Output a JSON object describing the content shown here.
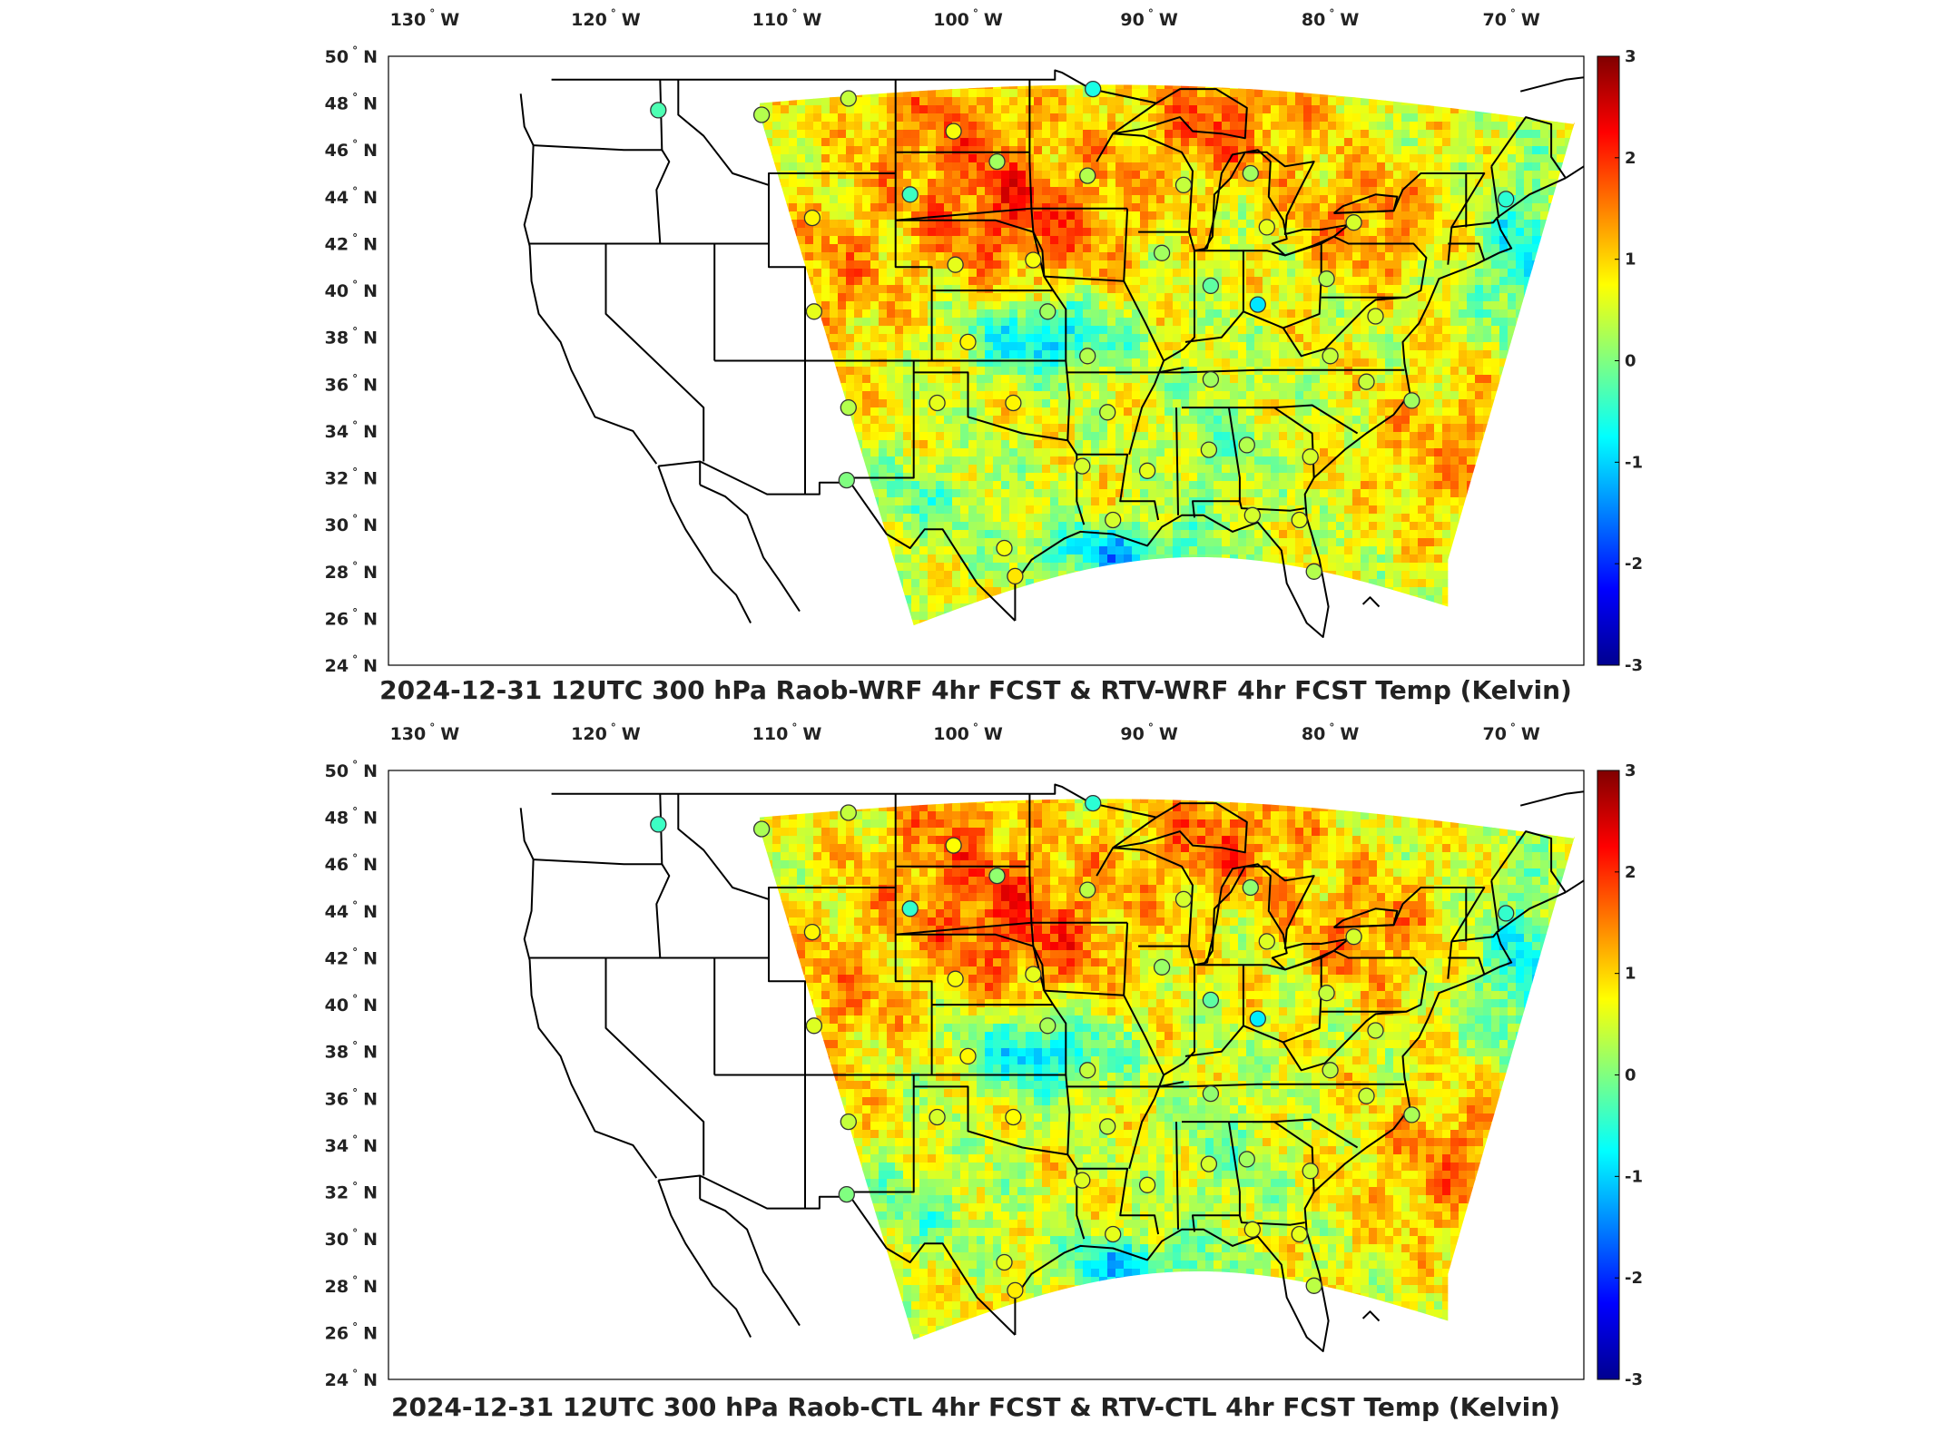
{
  "figure": {
    "panels": [
      {
        "title": "2024-12-31 12UTC 300 hPa Raob-WRF 4hr FCST & RTV-WRF 4hr FCST Temp (Kelvin)",
        "variant": "wrf"
      },
      {
        "title": "2024-12-31 12UTC 300 hPa Raob-CTL 4hr FCST & RTV-CTL 4hr FCST Temp (Kelvin)",
        "variant": "ctl"
      }
    ],
    "lon_ticks": [
      {
        "value": -130,
        "label": "130",
        "hemi": "W"
      },
      {
        "value": -120,
        "label": "120",
        "hemi": "W"
      },
      {
        "value": -110,
        "label": "110",
        "hemi": "W"
      },
      {
        "value": -100,
        "label": "100",
        "hemi": "W"
      },
      {
        "value": -90,
        "label": "90",
        "hemi": "W"
      },
      {
        "value": -80,
        "label": "80",
        "hemi": "W"
      },
      {
        "value": -70,
        "label": "70",
        "hemi": "W"
      }
    ],
    "lat_ticks": [
      {
        "value": 50,
        "label": "50",
        "hemi": "N"
      },
      {
        "value": 48,
        "label": "48",
        "hemi": "N"
      },
      {
        "value": 46,
        "label": "46",
        "hemi": "N"
      },
      {
        "value": 44,
        "label": "44",
        "hemi": "N"
      },
      {
        "value": 42,
        "label": "42",
        "hemi": "N"
      },
      {
        "value": 40,
        "label": "40",
        "hemi": "N"
      },
      {
        "value": 38,
        "label": "38",
        "hemi": "N"
      },
      {
        "value": 36,
        "label": "36",
        "hemi": "N"
      },
      {
        "value": 34,
        "label": "34",
        "hemi": "N"
      },
      {
        "value": 32,
        "label": "32",
        "hemi": "N"
      },
      {
        "value": 30,
        "label": "30",
        "hemi": "N"
      },
      {
        "value": 28,
        "label": "28",
        "hemi": "N"
      },
      {
        "value": 26,
        "label": "26",
        "hemi": "N"
      },
      {
        "value": 24,
        "label": "24",
        "hemi": "N"
      }
    ],
    "colorbar": {
      "min": -3,
      "max": 3,
      "ticks": [
        3,
        2,
        1,
        0,
        -1,
        -2,
        -3
      ],
      "colormap": "jet"
    },
    "map_extent": {
      "lon_min": -132,
      "lon_max": -66,
      "lat_min": 24,
      "lat_max": 50
    },
    "colors": {
      "border": "#000000",
      "frame": "#000000",
      "text": "#222222",
      "jet": [
        "#00008f",
        "#0000ff",
        "#0080ff",
        "#00ffff",
        "#80ff80",
        "#ffff00",
        "#ff8000",
        "#ff0000",
        "#800000"
      ]
    },
    "stations": [
      {
        "lon": -117.1,
        "lat": 47.7,
        "value": -0.3
      },
      {
        "lon": -111.4,
        "lat": 47.5,
        "value": 0.3
      },
      {
        "lon": -106.6,
        "lat": 48.2,
        "value": 0.4
      },
      {
        "lon": -100.8,
        "lat": 46.8,
        "value": 0.7
      },
      {
        "lon": -93.1,
        "lat": 48.6,
        "value": -0.6
      },
      {
        "lon": -98.4,
        "lat": 45.5,
        "value": 0.2
      },
      {
        "lon": -103.2,
        "lat": 44.1,
        "value": -0.4
      },
      {
        "lon": -108.6,
        "lat": 43.1,
        "value": 0.8
      },
      {
        "lon": -93.4,
        "lat": 44.9,
        "value": 0.3
      },
      {
        "lon": -88.1,
        "lat": 44.5,
        "value": 0.4
      },
      {
        "lon": -84.4,
        "lat": 45.0,
        "value": 0.2
      },
      {
        "lon": -83.5,
        "lat": 42.7,
        "value": 0.6
      },
      {
        "lon": -78.7,
        "lat": 42.9,
        "value": 0.5
      },
      {
        "lon": -70.3,
        "lat": 43.9,
        "value": -0.5
      },
      {
        "lon": -100.7,
        "lat": 41.1,
        "value": 0.6
      },
      {
        "lon": -96.4,
        "lat": 41.3,
        "value": 0.7
      },
      {
        "lon": -89.3,
        "lat": 41.6,
        "value": 0.2
      },
      {
        "lon": -86.6,
        "lat": 40.2,
        "value": -0.2
      },
      {
        "lon": -84.0,
        "lat": 39.4,
        "value": -0.9
      },
      {
        "lon": -80.2,
        "lat": 40.5,
        "value": 0.3
      },
      {
        "lon": -77.5,
        "lat": 38.9,
        "value": 0.5
      },
      {
        "lon": -108.5,
        "lat": 39.1,
        "value": 0.6
      },
      {
        "lon": -100.0,
        "lat": 37.8,
        "value": 0.8
      },
      {
        "lon": -95.6,
        "lat": 39.1,
        "value": 0.2
      },
      {
        "lon": -93.4,
        "lat": 37.2,
        "value": 0.3
      },
      {
        "lon": -86.6,
        "lat": 36.2,
        "value": 0.2
      },
      {
        "lon": -80.0,
        "lat": 37.2,
        "value": 0.4
      },
      {
        "lon": -78.0,
        "lat": 36.1,
        "value": 0.4
      },
      {
        "lon": -75.5,
        "lat": 35.3,
        "value": 0.2
      },
      {
        "lon": -106.6,
        "lat": 35.0,
        "value": 0.3
      },
      {
        "lon": -101.7,
        "lat": 35.2,
        "value": 0.6
      },
      {
        "lon": -97.5,
        "lat": 35.2,
        "value": 0.8
      },
      {
        "lon": -92.3,
        "lat": 34.8,
        "value": 0.4
      },
      {
        "lon": -90.1,
        "lat": 32.3,
        "value": 0.6
      },
      {
        "lon": -86.7,
        "lat": 33.2,
        "value": 0.4
      },
      {
        "lon": -84.6,
        "lat": 33.4,
        "value": 0.3
      },
      {
        "lon": -81.1,
        "lat": 32.9,
        "value": 0.5
      },
      {
        "lon": -106.7,
        "lat": 31.9,
        "value": 0.0
      },
      {
        "lon": -93.7,
        "lat": 32.5,
        "value": 0.5
      },
      {
        "lon": -92.0,
        "lat": 30.2,
        "value": 0.5
      },
      {
        "lon": -98.0,
        "lat": 29.0,
        "value": 0.7
      },
      {
        "lon": -97.4,
        "lat": 27.8,
        "value": 0.9
      },
      {
        "lon": -81.7,
        "lat": 30.2,
        "value": 0.6
      },
      {
        "lon": -80.9,
        "lat": 28.0,
        "value": 0.3
      },
      {
        "lon": -84.3,
        "lat": 30.4,
        "value": 0.5
      }
    ]
  }
}
